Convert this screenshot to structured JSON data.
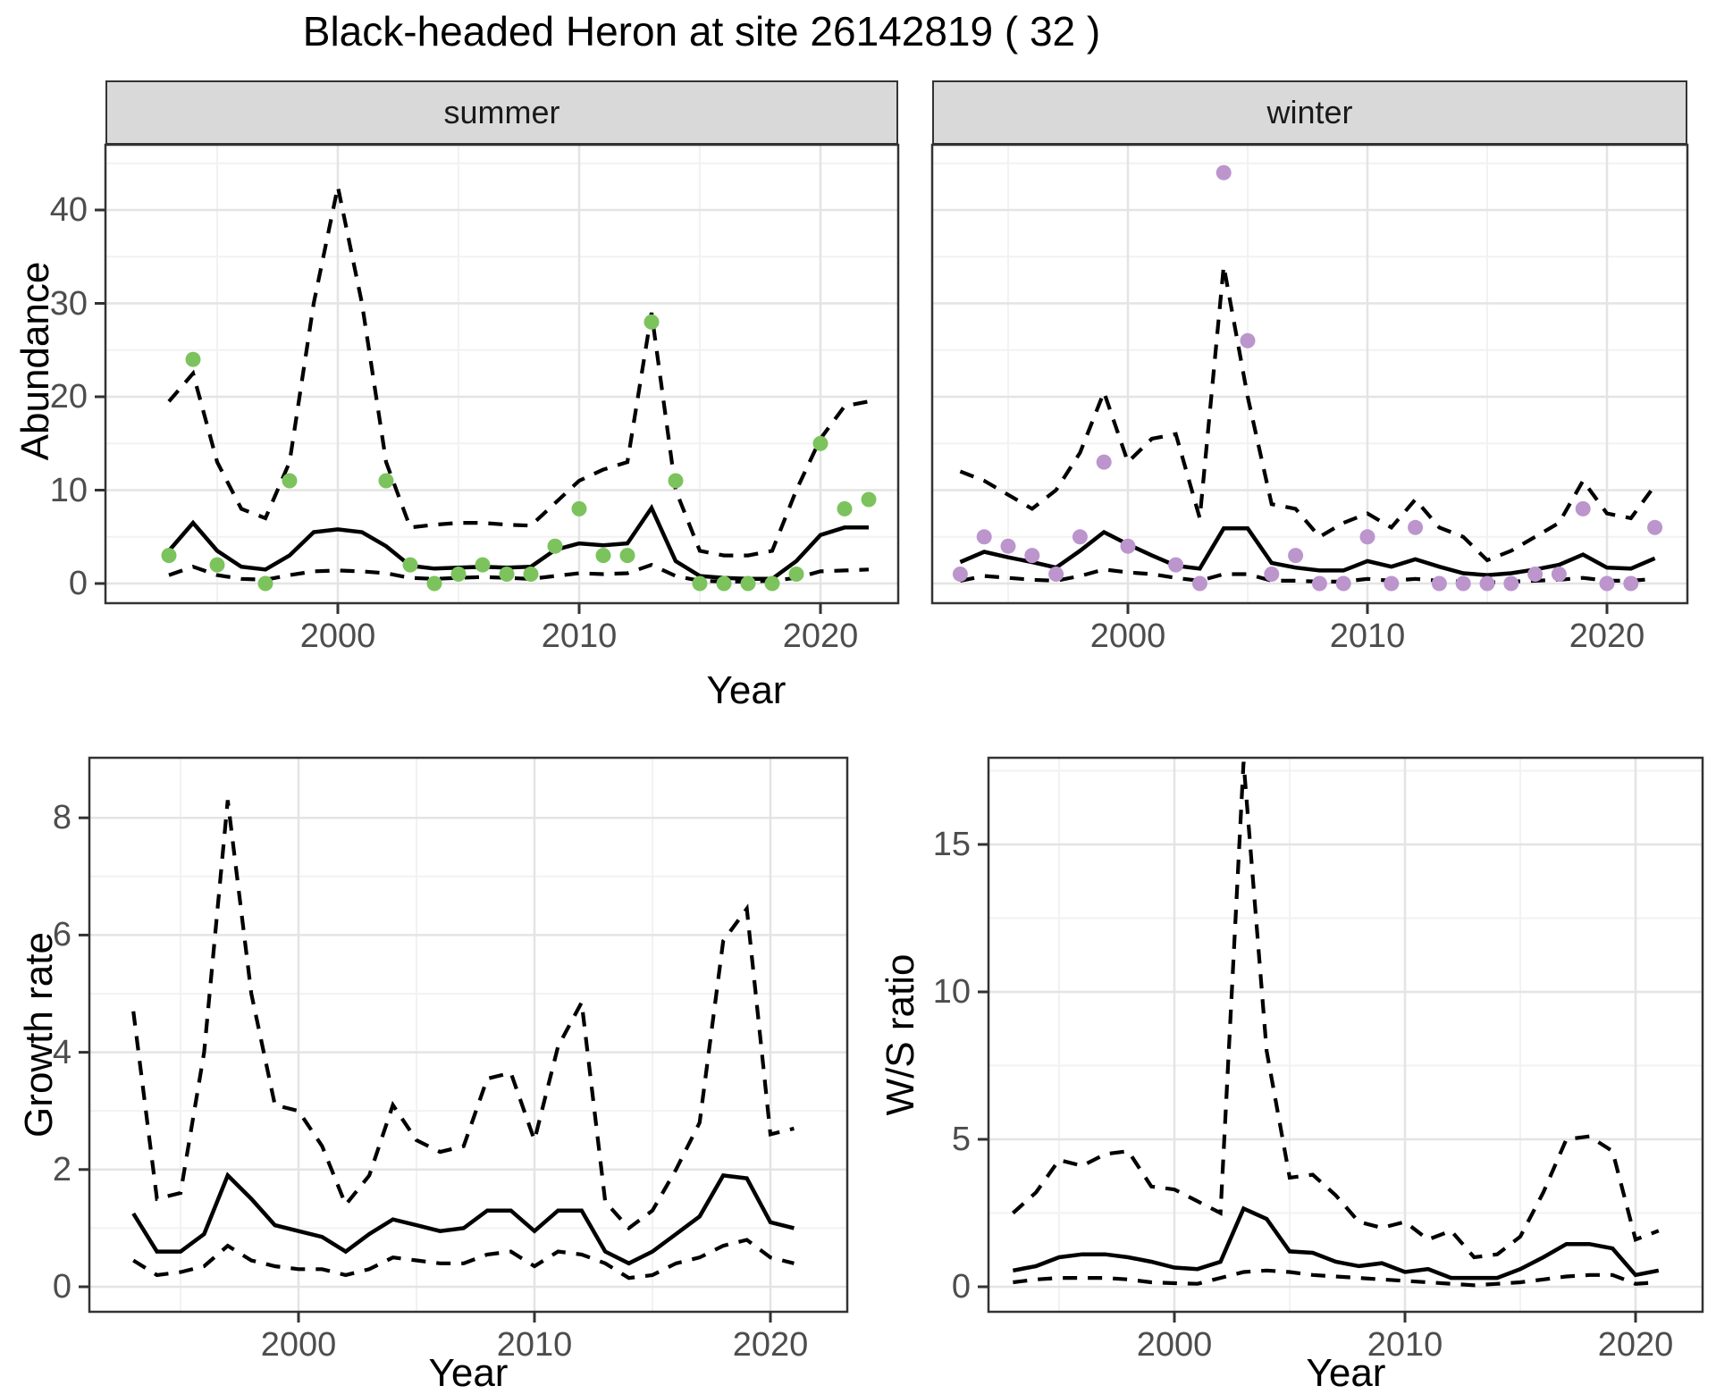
{
  "title": "Black-headed Heron at site 26142819 ( 32 )",
  "facets": {
    "summer": "summer",
    "winter": "winter"
  },
  "axis": {
    "x_title": "Year",
    "y_title_abundance": "Abundance",
    "y_title_growth": "Growth rate",
    "y_title_ws": "W/S ratio"
  },
  "colors": {
    "summer_points": "#7CC35D",
    "winter_points": "#BC95CD",
    "line": "#000000",
    "strip_bg": "#D9D9D9",
    "grid_major": "#E4E4E4",
    "grid_minor": "#F2F2F2",
    "axis_text": "#4D4D4D",
    "panel_border": "#333333"
  },
  "chart_data": [
    {
      "id": "abundance-summer",
      "type": "line+scatter",
      "facet": "summer",
      "xlabel": "Year",
      "ylabel": "Abundance",
      "x_ticks": [
        2000,
        2010,
        2020
      ],
      "y_ticks": [
        0,
        10,
        20,
        30,
        40
      ],
      "show_y_tick_labels": true,
      "ylim": [
        0,
        47
      ],
      "years": [
        1993,
        1994,
        1995,
        1996,
        1997,
        1998,
        1999,
        2000,
        2001,
        2002,
        2003,
        2004,
        2005,
        2006,
        2007,
        2008,
        2009,
        2010,
        2011,
        2012,
        2013,
        2014,
        2015,
        2016,
        2017,
        2018,
        2019,
        2020,
        2021,
        2022
      ],
      "observed": [
        3,
        24,
        2,
        null,
        0,
        11,
        null,
        null,
        null,
        11,
        2,
        0,
        1,
        2,
        1,
        1,
        4,
        8,
        3,
        3,
        28,
        11,
        0,
        0,
        0,
        0,
        1,
        15,
        8,
        9
      ],
      "mean": [
        3.5,
        6.5,
        3.5,
        1.8,
        1.5,
        3.0,
        5.5,
        5.8,
        5.5,
        4.0,
        1.9,
        1.6,
        1.7,
        1.8,
        1.7,
        1.8,
        3.6,
        4.3,
        4.1,
        4.3,
        8.1,
        2.4,
        0.8,
        0.6,
        0.5,
        0.5,
        2.4,
        5.2,
        6.0,
        6.0
      ],
      "upper_ci": [
        19.5,
        22.5,
        13,
        8,
        7,
        13,
        30,
        42.5,
        30,
        13,
        6,
        6.3,
        6.5,
        6.5,
        6.3,
        6.2,
        8.6,
        11,
        12.2,
        13,
        29,
        10,
        3.5,
        3,
        3,
        3.5,
        10,
        15.5,
        19,
        19.5
      ],
      "lower_ci": [
        0.9,
        1.8,
        0.9,
        0.5,
        0.4,
        0.9,
        1.3,
        1.4,
        1.3,
        1.1,
        0.6,
        0.5,
        0.6,
        0.7,
        0.6,
        0.5,
        0.8,
        1.1,
        1.0,
        1.1,
        2.0,
        0.8,
        0.3,
        0.2,
        0.2,
        0.3,
        0.6,
        1.3,
        1.4,
        1.5
      ],
      "point_color": "#7CC35D"
    },
    {
      "id": "abundance-winter",
      "type": "line+scatter",
      "facet": "winter",
      "xlabel": "Year",
      "ylabel": "Abundance",
      "x_ticks": [
        2000,
        2010,
        2020
      ],
      "y_ticks": [
        0,
        10,
        20,
        30,
        40
      ],
      "show_y_tick_labels": false,
      "ylim": [
        0,
        47
      ],
      "years": [
        1993,
        1994,
        1995,
        1996,
        1997,
        1998,
        1999,
        2000,
        2001,
        2002,
        2003,
        2004,
        2005,
        2006,
        2007,
        2008,
        2009,
        2010,
        2011,
        2012,
        2013,
        2014,
        2015,
        2016,
        2017,
        2018,
        2019,
        2020,
        2021,
        2022
      ],
      "observed": [
        1,
        5,
        4,
        3,
        1,
        5,
        13,
        4,
        null,
        2,
        0,
        44,
        26,
        1,
        3,
        0,
        0,
        5,
        0,
        6,
        0,
        0,
        0,
        0,
        1,
        1,
        8,
        0,
        0,
        6
      ],
      "mean": [
        2.3,
        3.4,
        2.8,
        2.3,
        1.7,
        3.5,
        5.5,
        4.2,
        3.0,
        1.9,
        1.6,
        5.9,
        5.9,
        2.2,
        1.7,
        1.4,
        1.4,
        2.4,
        1.8,
        2.6,
        1.8,
        1.1,
        0.9,
        1.1,
        1.5,
        2.0,
        3.1,
        1.7,
        1.6,
        2.7
      ],
      "upper_ci": [
        12,
        11,
        9.5,
        8,
        10,
        14,
        20.5,
        13,
        15.5,
        16,
        7,
        34,
        20,
        8.5,
        8,
        5,
        6.5,
        7.5,
        6,
        9,
        6,
        5,
        2.5,
        3.5,
        5,
        6.5,
        11,
        7.5,
        7,
        10.5
      ],
      "lower_ci": [
        0.3,
        0.8,
        0.6,
        0.4,
        0.3,
        0.8,
        1.5,
        1.2,
        1.0,
        0.6,
        0.3,
        1.0,
        1.0,
        0.3,
        0.3,
        0.2,
        0.2,
        0.5,
        0.3,
        0.5,
        0.3,
        0.2,
        0.1,
        0.2,
        0.3,
        0.4,
        0.6,
        0.3,
        0.3,
        0.5
      ],
      "point_color": "#BC95CD"
    },
    {
      "id": "growth-rate",
      "type": "line",
      "xlabel": "Year",
      "ylabel": "Growth rate",
      "x_ticks": [
        2000,
        2010,
        2020
      ],
      "y_ticks": [
        0,
        2,
        4,
        6,
        8
      ],
      "show_y_tick_labels": true,
      "ylim": [
        0,
        9
      ],
      "years": [
        1993,
        1994,
        1995,
        1996,
        1997,
        1998,
        1999,
        2000,
        2001,
        2002,
        2003,
        2004,
        2005,
        2006,
        2007,
        2008,
        2009,
        2010,
        2011,
        2012,
        2013,
        2014,
        2015,
        2016,
        2017,
        2018,
        2019,
        2020,
        2021
      ],
      "mean": [
        1.25,
        0.6,
        0.6,
        0.9,
        1.9,
        1.5,
        1.05,
        0.95,
        0.85,
        0.6,
        0.9,
        1.15,
        1.05,
        0.95,
        1.0,
        1.3,
        1.3,
        0.95,
        1.3,
        1.3,
        0.6,
        0.4,
        0.6,
        0.9,
        1.2,
        1.9,
        1.85,
        1.1,
        1.0
      ],
      "upper_ci": [
        4.7,
        1.5,
        1.6,
        4.0,
        8.3,
        5.0,
        3.1,
        3.0,
        2.4,
        1.4,
        1.9,
        3.1,
        2.5,
        2.3,
        2.4,
        3.55,
        3.65,
        2.5,
        4.1,
        4.85,
        1.45,
        1.0,
        1.3,
        2.0,
        2.8,
        5.9,
        6.45,
        2.6,
        2.7
      ],
      "lower_ci": [
        0.45,
        0.2,
        0.25,
        0.35,
        0.7,
        0.45,
        0.35,
        0.3,
        0.3,
        0.2,
        0.3,
        0.5,
        0.45,
        0.4,
        0.4,
        0.55,
        0.6,
        0.35,
        0.6,
        0.55,
        0.4,
        0.15,
        0.2,
        0.4,
        0.5,
        0.7,
        0.8,
        0.5,
        0.4
      ]
    },
    {
      "id": "ws-ratio",
      "type": "line",
      "xlabel": "Year",
      "ylabel": "W/S ratio",
      "x_ticks": [
        2000,
        2010,
        2020
      ],
      "y_ticks": [
        0,
        5,
        10,
        15
      ],
      "show_y_tick_labels": true,
      "ylim": [
        0,
        18
      ],
      "years": [
        1993,
        1994,
        1995,
        1996,
        1997,
        1998,
        1999,
        2000,
        2001,
        2002,
        2003,
        2004,
        2005,
        2006,
        2007,
        2008,
        2009,
        2010,
        2011,
        2012,
        2013,
        2014,
        2015,
        2016,
        2017,
        2018,
        2019,
        2020,
        2021
      ],
      "mean": [
        0.55,
        0.7,
        1.0,
        1.1,
        1.1,
        1.0,
        0.85,
        0.65,
        0.6,
        0.85,
        2.65,
        2.3,
        1.2,
        1.15,
        0.85,
        0.7,
        0.8,
        0.5,
        0.6,
        0.3,
        0.3,
        0.3,
        0.6,
        1.0,
        1.45,
        1.45,
        1.3,
        0.4,
        0.55
      ],
      "upper_ci": [
        2.5,
        3.2,
        4.3,
        4.1,
        4.5,
        4.6,
        3.4,
        3.3,
        2.9,
        2.5,
        17.8,
        8,
        3.7,
        3.8,
        3.1,
        2.2,
        2.0,
        2.2,
        1.6,
        1.9,
        1.0,
        1.1,
        1.7,
        3.2,
        5.0,
        5.1,
        4.6,
        1.6,
        1.9
      ],
      "lower_ci": [
        0.15,
        0.25,
        0.3,
        0.3,
        0.3,
        0.25,
        0.15,
        0.12,
        0.1,
        0.3,
        0.5,
        0.55,
        0.5,
        0.4,
        0.35,
        0.3,
        0.25,
        0.2,
        0.15,
        0.1,
        0.05,
        0.1,
        0.15,
        0.25,
        0.35,
        0.4,
        0.4,
        0.1,
        0.15
      ]
    }
  ]
}
